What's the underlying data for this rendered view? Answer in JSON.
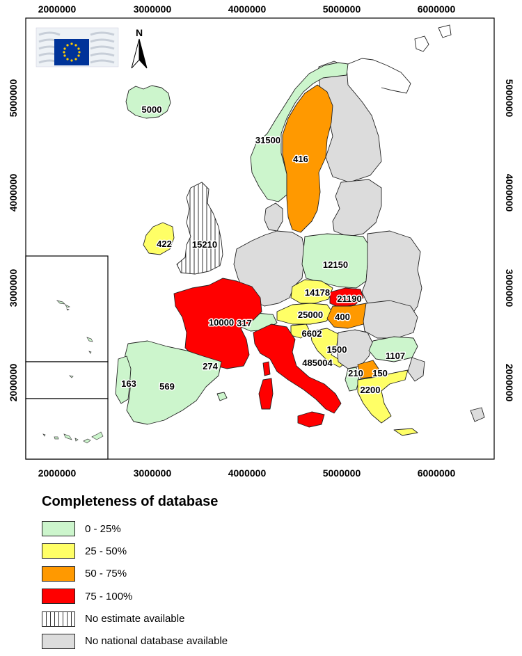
{
  "axes": {
    "x_ticks": [
      "2000000",
      "3000000",
      "4000000",
      "5000000",
      "6000000"
    ],
    "y_ticks": [
      "5000000",
      "4000000",
      "3000000",
      "2000000"
    ]
  },
  "north_arrow": {
    "label": "N"
  },
  "logo": {
    "icon": "eu-flag-icon"
  },
  "colors": {
    "c0_25": "#ccf5cc",
    "c25_50": "#ffff66",
    "c50_75": "#ff9900",
    "c75_100": "#ff0000",
    "no_db": "#dcdcdc",
    "sea": "#ffffff"
  },
  "values": {
    "iceland": "5000",
    "norway": "31500",
    "sweden": "416",
    "ireland": "422",
    "uk": "15210",
    "poland": "12150",
    "czech": "14178",
    "slovakia": "21190",
    "austria": "25000",
    "hungary": "400",
    "switzerland": "317",
    "france": "10000",
    "slovenia": "6602",
    "italy": "485004",
    "croatia": "1500",
    "bulgaria": "1107",
    "spain_ne": "274",
    "portugal": "163",
    "spain": "569",
    "albania": "210",
    "macedonia": "150",
    "greece": "2200"
  },
  "legend": {
    "title": "Completeness of database",
    "items": [
      {
        "label": "0 - 25%",
        "color": "#ccf5cc"
      },
      {
        "label": "25 - 50%",
        "color": "#ffff66"
      },
      {
        "label": "50 - 75%",
        "color": "#ff9900"
      },
      {
        "label": "75 - 100%",
        "color": "#ff0000"
      },
      {
        "label": "No estimate available",
        "pattern": "vertical-hatch"
      },
      {
        "label": "No national database available",
        "color": "#dcdcdc"
      }
    ]
  }
}
